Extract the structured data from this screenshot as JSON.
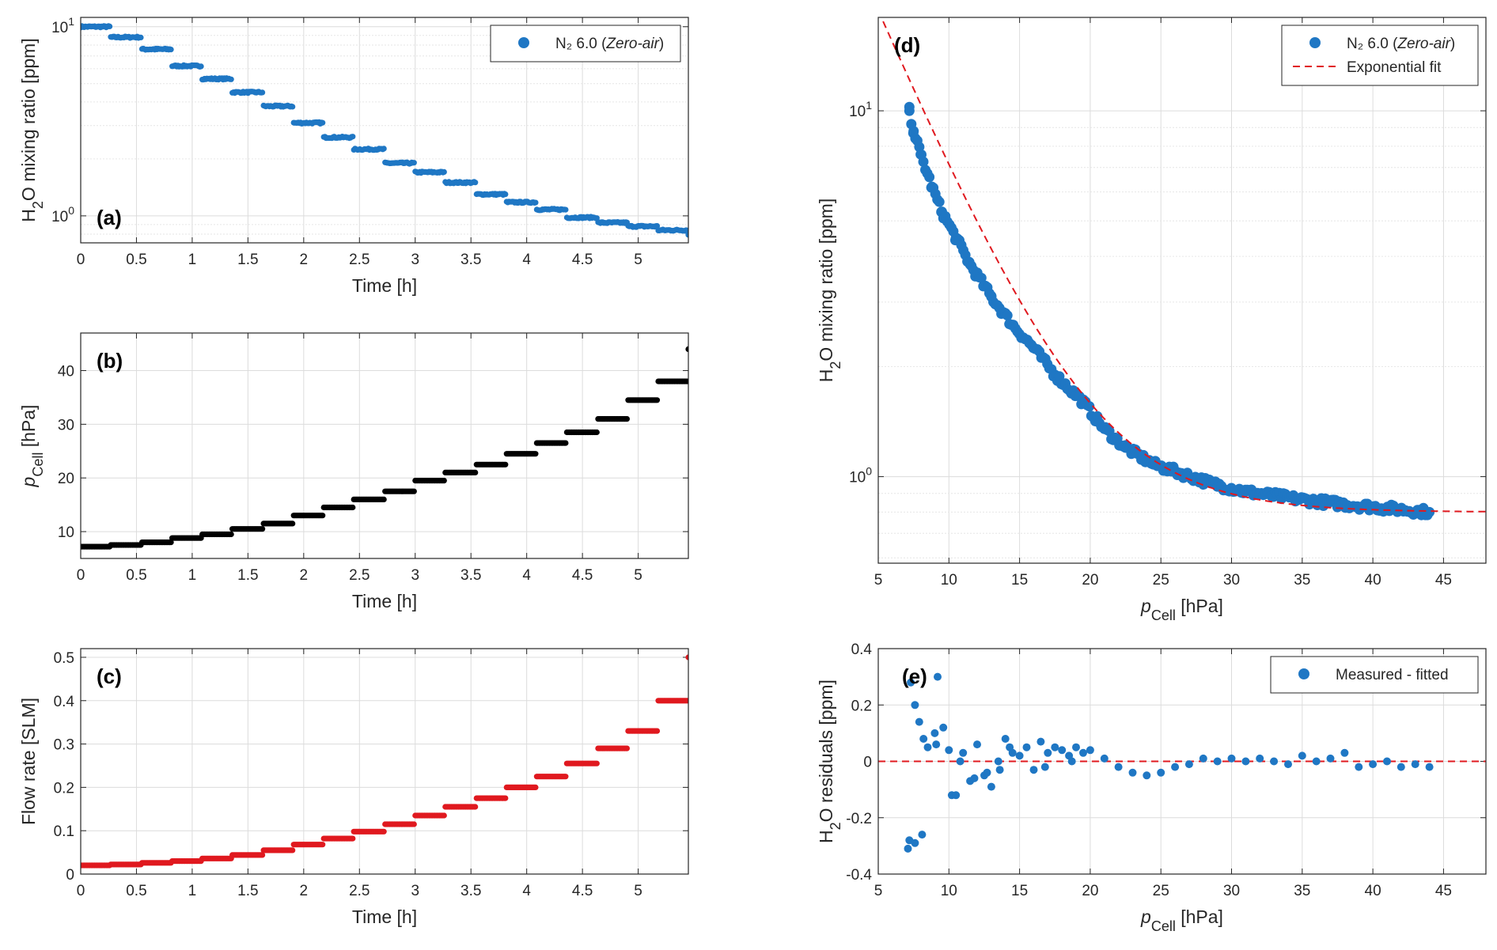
{
  "chart_data": [
    {
      "id": "a",
      "panel_label": "(a)",
      "type": "scatter",
      "xlabel": "Time [h]",
      "ylabel": "H2O mixing ratio [ppm]",
      "yscale": "log",
      "xlim": [
        0,
        5.45
      ],
      "ylim": [
        0.72,
        11.2
      ],
      "xticks": [
        0,
        0.5,
        1,
        1.5,
        2,
        2.5,
        3,
        3.5,
        4,
        4.5,
        5
      ],
      "xtick_labels": [
        "0",
        "0.5",
        "1",
        "1.5",
        "2",
        "2.5",
        "3",
        "3.5",
        "4",
        "4.5",
        "5"
      ],
      "yticks": [
        1,
        10
      ],
      "ytick_labels": [
        "10⁰",
        "10¹"
      ],
      "grid": true,
      "legend": {
        "placement": "top-right",
        "entries": [
          "N₂ 6.0 (Zero-air)"
        ]
      },
      "series": [
        {
          "name": "N₂ 6.0 (Zero-air)",
          "color": "#1f77c4",
          "x": [
            0,
            0.27,
            0.55,
            0.82,
            1.09,
            1.36,
            1.64,
            1.91,
            2.18,
            2.45,
            2.73,
            3.0,
            3.27,
            3.55,
            3.82,
            4.09,
            4.36,
            4.64,
            4.91,
            5.18,
            5.45
          ],
          "y": [
            10.0,
            8.8,
            7.6,
            6.2,
            5.3,
            4.5,
            3.8,
            3.1,
            2.6,
            2.25,
            1.9,
            1.7,
            1.5,
            1.3,
            1.18,
            1.08,
            0.98,
            0.92,
            0.88,
            0.84,
            0.8
          ]
        }
      ]
    },
    {
      "id": "b",
      "panel_label": "(b)",
      "type": "scatter",
      "xlabel": "Time [h]",
      "ylabel": "pCell [hPa]",
      "yscale": "linear",
      "xlim": [
        0,
        5.45
      ],
      "ylim": [
        5,
        47
      ],
      "xticks": [
        0,
        0.5,
        1,
        1.5,
        2,
        2.5,
        3,
        3.5,
        4,
        4.5,
        5
      ],
      "xtick_labels": [
        "0",
        "0.5",
        "1",
        "1.5",
        "2",
        "2.5",
        "3",
        "3.5",
        "4",
        "4.5",
        "5"
      ],
      "yticks": [
        10,
        20,
        30,
        40
      ],
      "ytick_labels": [
        "10",
        "20",
        "30",
        "40"
      ],
      "grid": true,
      "series": [
        {
          "name": "pCell",
          "color": "#000000",
          "x": [
            0,
            0.27,
            0.55,
            0.82,
            1.09,
            1.36,
            1.64,
            1.91,
            2.18,
            2.45,
            2.73,
            3.0,
            3.27,
            3.55,
            3.82,
            4.09,
            4.36,
            4.64,
            4.91,
            5.18,
            5.45
          ],
          "y": [
            7.2,
            7.5,
            8.0,
            8.8,
            9.5,
            10.5,
            11.5,
            13.0,
            14.5,
            16.0,
            17.5,
            19.5,
            21.0,
            22.5,
            24.5,
            26.5,
            28.5,
            31.0,
            34.5,
            38.0,
            44.0
          ]
        }
      ]
    },
    {
      "id": "c",
      "panel_label": "(c)",
      "type": "scatter",
      "xlabel": "Time [h]",
      "ylabel": "Flow rate [SLM]",
      "yscale": "linear",
      "xlim": [
        0,
        5.45
      ],
      "ylim": [
        0,
        0.52
      ],
      "xticks": [
        0,
        0.5,
        1,
        1.5,
        2,
        2.5,
        3,
        3.5,
        4,
        4.5,
        5
      ],
      "xtick_labels": [
        "0",
        "0.5",
        "1",
        "1.5",
        "2",
        "2.5",
        "3",
        "3.5",
        "4",
        "4.5",
        "5"
      ],
      "yticks": [
        0,
        0.1,
        0.2,
        0.3,
        0.4,
        0.5
      ],
      "ytick_labels": [
        "0",
        "0.1",
        "0.2",
        "0.3",
        "0.4",
        "0.5"
      ],
      "grid": true,
      "series": [
        {
          "name": "Flow rate",
          "color": "#e0191f",
          "x": [
            0,
            0.27,
            0.55,
            0.82,
            1.09,
            1.36,
            1.64,
            1.91,
            2.18,
            2.45,
            2.73,
            3.0,
            3.27,
            3.55,
            3.82,
            4.09,
            4.36,
            4.64,
            4.91,
            5.18,
            5.45
          ],
          "y": [
            0.02,
            0.022,
            0.026,
            0.03,
            0.036,
            0.044,
            0.055,
            0.068,
            0.082,
            0.098,
            0.115,
            0.135,
            0.155,
            0.175,
            0.2,
            0.225,
            0.255,
            0.29,
            0.33,
            0.4,
            0.5
          ]
        }
      ]
    },
    {
      "id": "d",
      "panel_label": "(d)",
      "type": "scatter",
      "xlabel": "pCell [hPa]",
      "ylabel": "H2O mixing ratio [ppm]",
      "yscale": "log",
      "xlim": [
        5,
        48
      ],
      "ylim": [
        0.58,
        18
      ],
      "xticks": [
        5,
        10,
        15,
        20,
        25,
        30,
        35,
        40,
        45
      ],
      "xtick_labels": [
        "5",
        "10",
        "15",
        "20",
        "25",
        "30",
        "35",
        "40",
        "45"
      ],
      "yticks": [
        1,
        10
      ],
      "ytick_labels": [
        "10⁰",
        "10¹"
      ],
      "grid": true,
      "legend": {
        "placement": "top-right",
        "entries": [
          "N₂ 6.0 (Zero-air)",
          "Exponential fit"
        ]
      },
      "series": [
        {
          "name": "N₂ 6.0 (Zero-air)",
          "color": "#1f77c4",
          "x": [
            7.2,
            7.5,
            8.0,
            8.8,
            9.5,
            10.5,
            11.5,
            13.0,
            14.5,
            16.0,
            17.5,
            19.5,
            21.0,
            22.5,
            24.5,
            26.5,
            28.5,
            31.0,
            34.5,
            38.0,
            41.0,
            44.0
          ],
          "y": [
            10.0,
            8.8,
            7.6,
            6.2,
            5.3,
            4.5,
            3.8,
            3.1,
            2.6,
            2.25,
            1.9,
            1.6,
            1.35,
            1.2,
            1.08,
            1.02,
            0.96,
            0.91,
            0.87,
            0.84,
            0.82,
            0.8
          ]
        },
        {
          "name": "Exponential fit",
          "color": "#e0191f",
          "style": "dashed",
          "fit": {
            "a": 18.0,
            "b": 0.2086,
            "c": 0.8
          }
        }
      ]
    },
    {
      "id": "e",
      "panel_label": "(e)",
      "type": "scatter",
      "xlabel": "pCell [hPa]",
      "ylabel": "H2O residuals [ppm]",
      "yscale": "linear",
      "xlim": [
        5,
        48
      ],
      "ylim": [
        -0.4,
        0.4
      ],
      "xticks": [
        5,
        10,
        15,
        20,
        25,
        30,
        35,
        40,
        45
      ],
      "xtick_labels": [
        "5",
        "10",
        "15",
        "20",
        "25",
        "30",
        "35",
        "40",
        "45"
      ],
      "yticks": [
        -0.4,
        -0.2,
        0,
        0.2,
        0.4
      ],
      "ytick_labels": [
        "-0.4",
        "-0.2",
        "0",
        "0.2",
        "0.4"
      ],
      "grid": true,
      "legend": {
        "placement": "top-right",
        "entries": [
          "Measured - fitted"
        ]
      },
      "zero_line": {
        "y": 0,
        "color": "#e0191f",
        "style": "dashed"
      },
      "series": [
        {
          "name": "Measured - fitted",
          "color": "#1f77c4",
          "x": [
            7.1,
            7.3,
            7.6,
            7.9,
            8.2,
            8.5,
            9.0,
            9.2,
            9.6,
            10.0,
            10.2,
            10.5,
            11.0,
            11.5,
            12.0,
            12.5,
            13.0,
            13.5,
            14.0,
            14.5,
            15.0,
            15.5,
            16.0,
            16.5,
            17.0,
            17.5,
            18.0,
            18.5,
            19.0,
            19.5,
            20.0,
            21.0,
            22.0,
            23.0,
            24.0,
            25.0,
            26.0,
            27.0,
            28.0,
            29.0,
            30.0,
            31.0,
            32.0,
            33.0,
            34.0,
            35.0,
            36.0,
            37.0,
            38.0,
            39.0,
            40.0,
            41.0,
            42.0,
            43.0,
            44.0,
            7.2,
            7.6,
            8.1,
            9.1,
            10.8,
            11.8,
            12.7,
            13.6,
            14.3,
            16.8,
            18.7
          ],
          "y": [
            -0.31,
            0.28,
            0.2,
            0.14,
            0.08,
            0.05,
            0.1,
            0.3,
            0.12,
            0.04,
            -0.12,
            -0.12,
            0.03,
            -0.07,
            0.06,
            -0.05,
            -0.09,
            0.0,
            0.08,
            0.03,
            0.02,
            0.05,
            -0.03,
            0.07,
            0.03,
            0.05,
            0.04,
            0.02,
            0.05,
            0.03,
            0.04,
            0.01,
            -0.02,
            -0.04,
            -0.05,
            -0.04,
            -0.02,
            -0.01,
            0.01,
            0.0,
            0.01,
            0.0,
            0.01,
            0.0,
            -0.01,
            0.02,
            0.0,
            0.01,
            0.03,
            -0.02,
            -0.01,
            0.0,
            -0.02,
            -0.01,
            -0.02,
            -0.28,
            -0.29,
            -0.26,
            0.06,
            0.0,
            -0.06,
            -0.04,
            -0.03,
            0.05,
            -0.02,
            0.0
          ]
        }
      ]
    }
  ]
}
